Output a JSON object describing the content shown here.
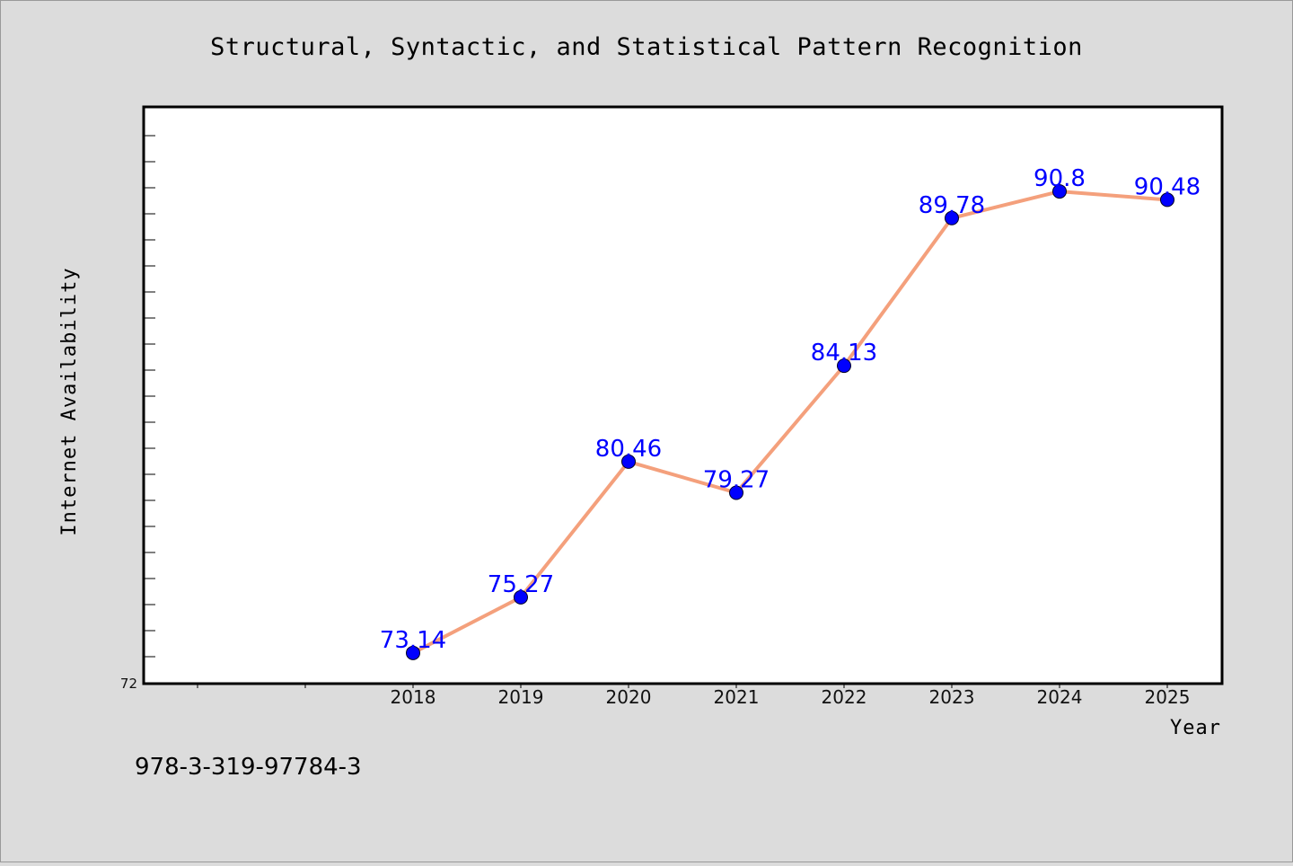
{
  "chart_data": {
    "type": "line",
    "title": "Structural, Syntactic, and Statistical Pattern Recognition",
    "xlabel": "Year",
    "ylabel": "Internet Availability",
    "categories": [
      "2018",
      "2019",
      "2020",
      "2021",
      "2022",
      "2023",
      "2024",
      "2025"
    ],
    "series": [
      {
        "values": [
          73.14,
          75.27,
          80.46,
          79.27,
          84.13,
          89.78,
          90.8,
          90.48
        ],
        "labels": [
          "73.14",
          "75.27",
          "80.46",
          "79.27",
          "84.13",
          "89.78",
          "90.8",
          "90.48"
        ]
      }
    ],
    "ylim": [
      72,
      94
    ],
    "yticks_labeled": [
      "72"
    ],
    "grid": false,
    "line_color": "#f4a07c",
    "marker_color": "#0000ff",
    "label_color": "#0000ff",
    "background_color": "#dcdcdc",
    "plot_background": "#ffffff"
  },
  "footnote": "978-3-319-97784-3"
}
